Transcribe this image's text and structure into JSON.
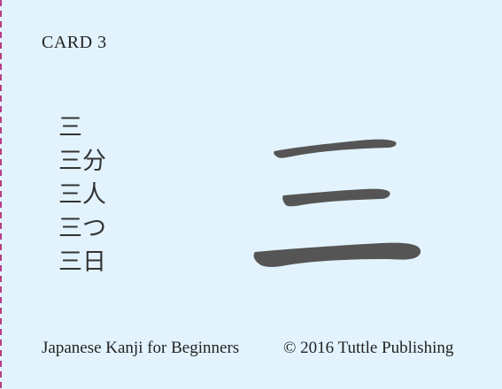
{
  "card": {
    "label": "CARD 3",
    "kanji": "三",
    "vocabulary": [
      "三",
      "三分",
      "三人",
      "三つ",
      "三日"
    ]
  },
  "footer": {
    "book_title": "Japanese Kanji for Beginners",
    "copyright": "© 2016 Tuttle Publishing"
  },
  "colors": {
    "background": "#e2f3fd",
    "perforation": "#b42a7a",
    "kanji_fill": "#555555",
    "text": "#222222"
  }
}
